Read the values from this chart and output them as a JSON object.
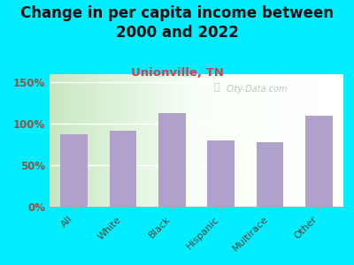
{
  "title": "Change in per capita income between\n2000 and 2022",
  "subtitle": "Unionville, TN",
  "categories": [
    "All",
    "White",
    "Black",
    "Hispanic",
    "Multirace",
    "Other"
  ],
  "values": [
    87,
    92,
    113,
    80,
    78,
    110
  ],
  "bar_color": "#b0a0cc",
  "title_fontsize": 12,
  "subtitle_fontsize": 9.5,
  "subtitle_color": "#cc4444",
  "title_color": "#111111",
  "background_color": "#00eeff",
  "yticks": [
    0,
    50,
    100,
    150
  ],
  "ylim": [
    0,
    160
  ],
  "ytick_color": "#885544",
  "xtick_color": "#554433",
  "watermark": "City-Data.com"
}
